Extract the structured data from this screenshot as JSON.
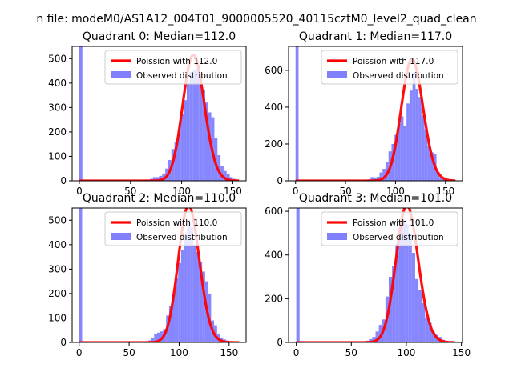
{
  "figure": {
    "suptitle": "n file: modeM0/AS1A12_004T01_9000005520_40115cztM0_level2_quad_clean"
  },
  "colors": {
    "hist": "#8080ff",
    "curve": "#ff0000",
    "axis": "#000000"
  },
  "chart_data": [
    {
      "type": "bar",
      "title": "Quadrant 0: Median=112.0",
      "median": 112.0,
      "xlim": [
        -7,
        163
      ],
      "ylim": [
        0,
        550
      ],
      "xticks": [
        0,
        50,
        100,
        150
      ],
      "yticks": [
        0,
        100,
        200,
        300,
        400,
        500
      ],
      "series": [
        {
          "name": "Poission with 112.0",
          "kind": "line"
        },
        {
          "name": "Observed distribution",
          "kind": "histogram",
          "bins": [
            [
              0,
              550
            ],
            [
              3,
              4
            ],
            [
              6,
              3
            ],
            [
              9,
              2
            ],
            [
              12,
              2
            ],
            [
              15,
              2
            ],
            [
              18,
              2
            ],
            [
              21,
              2
            ],
            [
              24,
              2
            ],
            [
              27,
              2
            ],
            [
              30,
              2
            ],
            [
              33,
              2
            ],
            [
              36,
              2
            ],
            [
              39,
              2
            ],
            [
              42,
              2
            ],
            [
              45,
              2
            ],
            [
              48,
              2
            ],
            [
              51,
              2
            ],
            [
              54,
              2
            ],
            [
              57,
              2
            ],
            [
              60,
              3
            ],
            [
              63,
              3
            ],
            [
              66,
              5
            ],
            [
              69,
              8
            ],
            [
              72,
              15
            ],
            [
              75,
              15
            ],
            [
              78,
              20
            ],
            [
              81,
              30
            ],
            [
              84,
              50
            ],
            [
              87,
              85
            ],
            [
              90,
              130
            ],
            [
              93,
              160
            ],
            [
              96,
              210
            ],
            [
              99,
              275
            ],
            [
              102,
              330
            ],
            [
              105,
              400
            ],
            [
              108,
              445
            ],
            [
              111,
              455
            ],
            [
              114,
              460
            ],
            [
              117,
              420
            ],
            [
              120,
              370
            ],
            [
              123,
              320
            ],
            [
              126,
              280
            ],
            [
              129,
              260
            ],
            [
              132,
              175
            ],
            [
              135,
              105
            ],
            [
              138,
              60
            ],
            [
              141,
              40
            ],
            [
              144,
              28
            ],
            [
              147,
              15
            ],
            [
              150,
              8
            ],
            [
              153,
              3
            ]
          ]
        }
      ]
    },
    {
      "type": "bar",
      "title": "Quadrant 1: Median=117.0",
      "median": 117.0,
      "xlim": [
        -7,
        167
      ],
      "ylim": [
        0,
        730
      ],
      "xticks": [
        0,
        50,
        100,
        150
      ],
      "yticks": [
        0,
        200,
        400,
        600
      ],
      "series": [
        {
          "name": "Poission with 117.0",
          "kind": "line"
        },
        {
          "name": "Observed distribution",
          "kind": "histogram",
          "bins": [
            [
              0,
              730
            ],
            [
              3,
              5
            ],
            [
              6,
              3
            ],
            [
              9,
              2
            ],
            [
              12,
              2
            ],
            [
              15,
              2
            ],
            [
              18,
              2
            ],
            [
              21,
              2
            ],
            [
              24,
              2
            ],
            [
              27,
              2
            ],
            [
              30,
              2
            ],
            [
              33,
              2
            ],
            [
              36,
              2
            ],
            [
              39,
              2
            ],
            [
              42,
              2
            ],
            [
              45,
              2
            ],
            [
              48,
              2
            ],
            [
              51,
              2
            ],
            [
              54,
              2
            ],
            [
              57,
              2
            ],
            [
              60,
              3
            ],
            [
              63,
              3
            ],
            [
              66,
              4
            ],
            [
              69,
              5
            ],
            [
              72,
              8
            ],
            [
              75,
              20
            ],
            [
              78,
              18
            ],
            [
              81,
              22
            ],
            [
              84,
              45
            ],
            [
              87,
              65
            ],
            [
              90,
              100
            ],
            [
              93,
              160
            ],
            [
              96,
              200
            ],
            [
              99,
              250
            ],
            [
              102,
              310
            ],
            [
              105,
              350
            ],
            [
              108,
              300
            ],
            [
              111,
              420
            ],
            [
              114,
              490
            ],
            [
              117,
              590
            ],
            [
              120,
              500
            ],
            [
              123,
              455
            ],
            [
              126,
              355
            ],
            [
              129,
              280
            ],
            [
              132,
              190
            ],
            [
              135,
              155
            ],
            [
              138,
              145
            ],
            [
              141,
              45
            ],
            [
              144,
              18
            ],
            [
              147,
              10
            ],
            [
              150,
              5
            ],
            [
              153,
              3
            ]
          ]
        }
      ]
    },
    {
      "type": "bar",
      "title": "Quadrant 2: Median=110.0",
      "median": 110.0,
      "xlim": [
        -7,
        167
      ],
      "ylim": [
        0,
        550
      ],
      "xticks": [
        0,
        50,
        100,
        150
      ],
      "yticks": [
        0,
        100,
        200,
        300,
        400,
        500
      ],
      "series": [
        {
          "name": "Poission with 110.0",
          "kind": "line"
        },
        {
          "name": "Observed distribution",
          "kind": "histogram",
          "bins": [
            [
              0,
              550
            ],
            [
              3,
              5
            ],
            [
              6,
              3
            ],
            [
              9,
              2
            ],
            [
              12,
              2
            ],
            [
              15,
              2
            ],
            [
              18,
              2
            ],
            [
              21,
              2
            ],
            [
              24,
              2
            ],
            [
              27,
              2
            ],
            [
              30,
              2
            ],
            [
              33,
              2
            ],
            [
              36,
              2
            ],
            [
              39,
              2
            ],
            [
              42,
              2
            ],
            [
              45,
              2
            ],
            [
              48,
              2
            ],
            [
              51,
              2
            ],
            [
              54,
              2
            ],
            [
              57,
              2
            ],
            [
              60,
              3
            ],
            [
              63,
              3
            ],
            [
              66,
              5
            ],
            [
              69,
              8
            ],
            [
              72,
              20
            ],
            [
              75,
              35
            ],
            [
              78,
              40
            ],
            [
              81,
              45
            ],
            [
              84,
              55
            ],
            [
              87,
              110
            ],
            [
              90,
              150
            ],
            [
              93,
              200
            ],
            [
              96,
              265
            ],
            [
              99,
              325
            ],
            [
              102,
              380
            ],
            [
              105,
              440
            ],
            [
              108,
              500
            ],
            [
              111,
              470
            ],
            [
              114,
              400
            ],
            [
              117,
              370
            ],
            [
              120,
              330
            ],
            [
              123,
              290
            ],
            [
              126,
              250
            ],
            [
              129,
              200
            ],
            [
              132,
              90
            ],
            [
              135,
              70
            ],
            [
              138,
              35
            ],
            [
              141,
              20
            ],
            [
              144,
              12
            ],
            [
              147,
              8
            ],
            [
              150,
              5
            ],
            [
              153,
              3
            ]
          ]
        }
      ]
    },
    {
      "type": "bar",
      "title": "Quadrant 3: Median=101.0",
      "median": 101.0,
      "xlim": [
        -7,
        151
      ],
      "ylim": [
        0,
        615
      ],
      "xticks": [
        0,
        50,
        100,
        150
      ],
      "yticks": [
        0,
        200,
        400,
        600
      ],
      "series": [
        {
          "name": "Poission with 101.0",
          "kind": "line"
        },
        {
          "name": "Observed distribution",
          "kind": "histogram",
          "bins": [
            [
              0,
              615
            ],
            [
              3,
              5
            ],
            [
              6,
              3
            ],
            [
              9,
              2
            ],
            [
              12,
              2
            ],
            [
              15,
              2
            ],
            [
              18,
              2
            ],
            [
              21,
              2
            ],
            [
              24,
              2
            ],
            [
              27,
              2
            ],
            [
              30,
              2
            ],
            [
              33,
              2
            ],
            [
              36,
              2
            ],
            [
              39,
              2
            ],
            [
              42,
              2
            ],
            [
              45,
              2
            ],
            [
              48,
              2
            ],
            [
              51,
              2
            ],
            [
              54,
              2
            ],
            [
              57,
              3
            ],
            [
              60,
              5
            ],
            [
              63,
              8
            ],
            [
              66,
              15
            ],
            [
              69,
              25
            ],
            [
              72,
              50
            ],
            [
              75,
              80
            ],
            [
              78,
              105
            ],
            [
              81,
              210
            ],
            [
              84,
              300
            ],
            [
              87,
              350
            ],
            [
              90,
              450
            ],
            [
              93,
              520
            ],
            [
              96,
              560
            ],
            [
              99,
              540
            ],
            [
              102,
              500
            ],
            [
              105,
              410
            ],
            [
              108,
              290
            ],
            [
              111,
              240
            ],
            [
              114,
              180
            ],
            [
              117,
              110
            ],
            [
              120,
              90
            ],
            [
              123,
              50
            ],
            [
              126,
              35
            ],
            [
              129,
              25
            ],
            [
              132,
              12
            ],
            [
              135,
              6
            ],
            [
              138,
              3
            ]
          ]
        }
      ]
    }
  ]
}
